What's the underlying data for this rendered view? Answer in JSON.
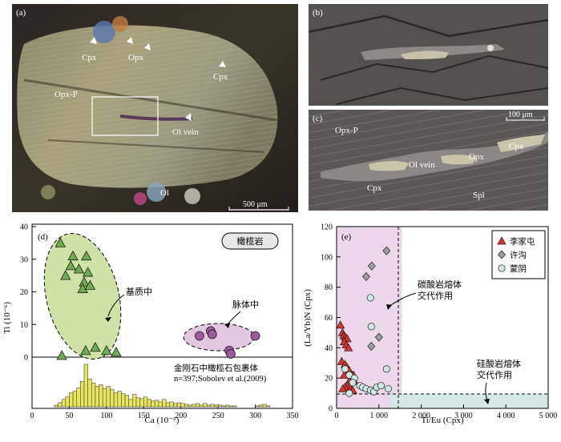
{
  "panels": {
    "a": {
      "label": "(a)",
      "labels": [
        "Cpx",
        "Opx",
        "Cpx",
        "Opx-P",
        "Ol vein",
        "Ol"
      ],
      "scale": "500 μm"
    },
    "b": {
      "label": "(b)"
    },
    "c": {
      "label": "(c)",
      "labels": [
        "Opx-P",
        "Cpx",
        "Opx",
        "Ol vein",
        "Cpx",
        "Spl"
      ],
      "scale": "100 μm"
    },
    "d": {
      "label": "(d)",
      "badge": "橄榄岩",
      "ann_matrix": "基质中",
      "ann_vein": "脉体中",
      "hist_text_line1": "金刚石中橄榄石包裹体",
      "hist_text_line2": "n=397;Sobolev et al.(2009)",
      "xlabel": "Ca (10⁻⁶)",
      "ylabel": "Ti (10⁻⁶)",
      "xticks": [
        "0",
        "50",
        "100",
        "150",
        "200",
        "250",
        "300",
        "350"
      ],
      "yticks": [
        "0",
        "10",
        "20",
        "30",
        "40"
      ]
    },
    "e": {
      "label": "(e)",
      "ann_carb_line1": "碳酸岩熔体",
      "ann_carb_line2": "交代作用",
      "ann_sil_line1": "硅酸岩熔体",
      "ann_sil_line2": "交代作用",
      "xlabel": "Ti/Eu (Cpx)",
      "ylabel": "(La/Yb)N (Cpx)",
      "xticks": [
        "0",
        "1 000",
        "2 000",
        "3 000",
        "4 000",
        "5 000"
      ],
      "yticks": [
        "0",
        "20",
        "40",
        "60",
        "80",
        "100",
        "120"
      ],
      "legend": [
        "李家屯",
        "许沟",
        "蒙阴"
      ]
    }
  },
  "chart_data": [
    {
      "type": "scatter",
      "panel": "d",
      "xlim": [
        0,
        350
      ],
      "ylim": [
        0,
        40
      ],
      "series": [
        {
          "name": "基质中",
          "color": "#6fae4e",
          "x": [
            38,
            55,
            73,
            52,
            63,
            75,
            70,
            45,
            68,
            78,
            72,
            85,
            100,
            113,
            40
          ],
          "y": [
            35,
            31,
            31,
            28,
            27,
            26,
            23,
            25,
            21,
            22,
            2,
            3,
            2,
            1.5,
            0.5
          ]
        },
        {
          "name": "脉体中",
          "color": "#a05a9e",
          "x": [
            225,
            240,
            300,
            265,
            267,
            242
          ],
          "y": [
            6.5,
            8,
            6.5,
            2,
            1,
            7
          ]
        }
      ]
    },
    {
      "type": "bar",
      "panel": "d-histogram",
      "x": [
        30,
        35,
        40,
        45,
        50,
        55,
        60,
        65,
        70,
        75,
        80,
        85,
        90,
        95,
        100,
        105,
        110,
        115,
        120,
        125,
        130,
        135,
        140,
        145,
        150,
        155,
        160,
        165,
        170,
        175,
        180,
        185,
        190,
        195,
        200,
        205,
        210,
        215,
        220,
        225,
        230,
        235,
        240,
        245,
        250,
        255,
        260,
        265,
        270,
        300,
        305,
        310,
        315
      ],
      "values": [
        2,
        5,
        9,
        12,
        17,
        19,
        23,
        31,
        52,
        34,
        29,
        25,
        27,
        22,
        25,
        21,
        17,
        19,
        16,
        14,
        9,
        15,
        11,
        10,
        12,
        9,
        7,
        8,
        6,
        9,
        5,
        6,
        4,
        5,
        4,
        3,
        2,
        3,
        4,
        2,
        4,
        2,
        3,
        2,
        2,
        1,
        2,
        1,
        1,
        1,
        2,
        3,
        1
      ]
    },
    {
      "type": "scatter",
      "panel": "e",
      "xlim": [
        0,
        5000
      ],
      "ylim": [
        0,
        120
      ],
      "series": [
        {
          "name": "李家屯",
          "marker": "triangle",
          "color": "#d9342b",
          "x": [
            90,
            140,
            170,
            210,
            250,
            180,
            230,
            280,
            120,
            200,
            250,
            300,
            180,
            350,
            400,
            420,
            300,
            250,
            200,
            150,
            330,
            380
          ],
          "y": [
            55,
            50,
            48,
            47,
            46,
            44,
            42,
            40,
            31,
            29,
            27,
            25,
            22,
            22,
            22,
            18,
            18,
            15,
            14,
            13,
            13,
            12
          ]
        },
        {
          "name": "许沟",
          "marker": "diamond",
          "color": "#9e9e9e",
          "x": [
            1180,
            830,
            700,
            820,
            1000
          ],
          "y": [
            104,
            94,
            87,
            41,
            47
          ]
        },
        {
          "name": "蒙阴",
          "marker": "circle",
          "color": "#cde8e2",
          "x": [
            800,
            820,
            1180,
            200,
            300,
            420,
            380,
            550,
            620,
            700,
            800,
            880,
            950,
            1050,
            1220,
            300
          ],
          "y": [
            73,
            54,
            26,
            26,
            22,
            20,
            17,
            15,
            14,
            13,
            12,
            11,
            14,
            15,
            13,
            10
          ]
        }
      ]
    }
  ]
}
